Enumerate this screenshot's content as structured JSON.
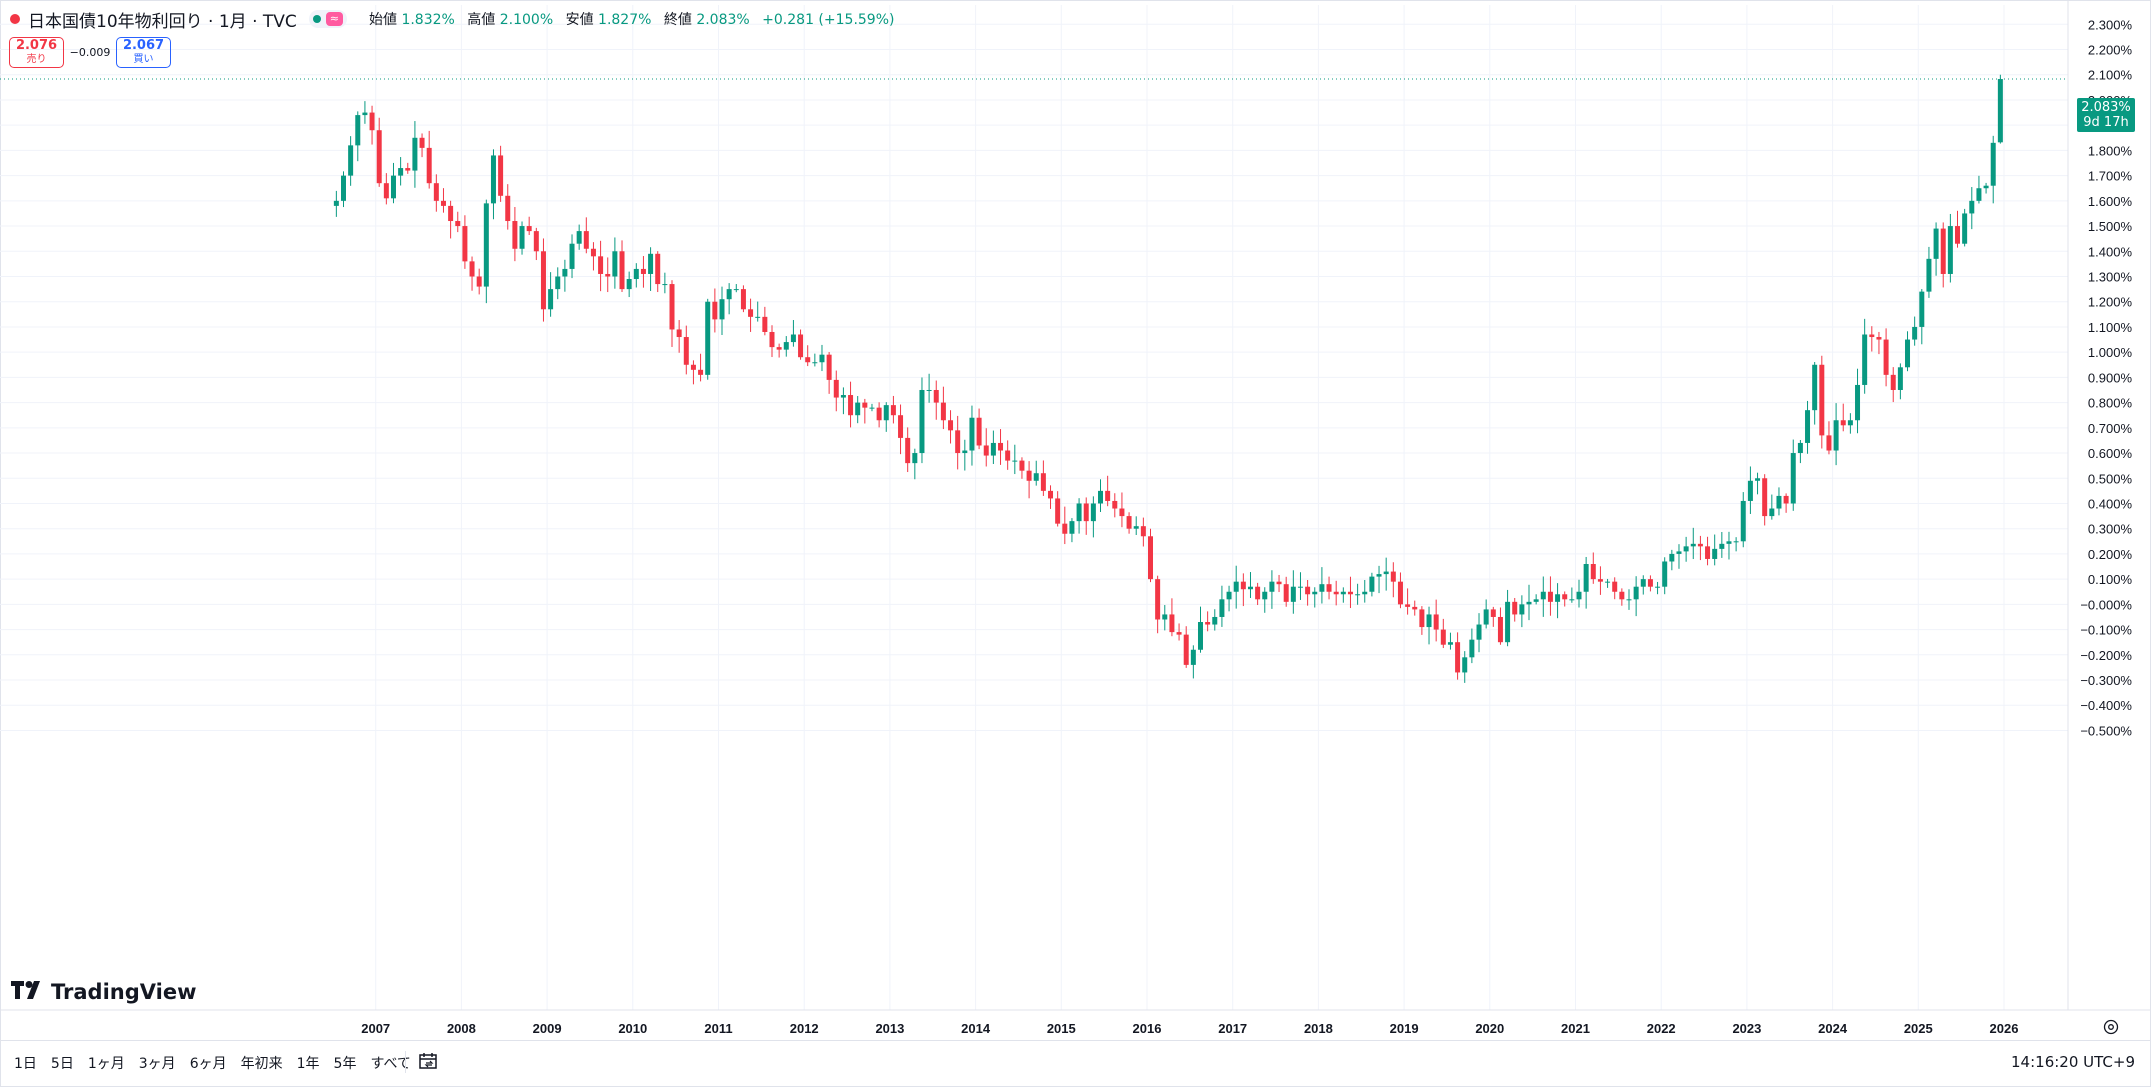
{
  "legend": {
    "symbol": "日本国債10年物利回り · 1月 · TVC",
    "market_badge": "≈",
    "open_label": "始値",
    "open": "1.832%",
    "high_label": "高値",
    "high": "2.100%",
    "low_label": "安値",
    "low": "1.827%",
    "close_label": "終値",
    "close": "2.083%",
    "change": "+0.281 (+15.59%)"
  },
  "quote": {
    "sell_price": "2.076",
    "sell_label": "売り",
    "spread": "−0.009",
    "buy_price": "2.067",
    "buy_label": "買い"
  },
  "last_price_label": {
    "price": "2.083%",
    "countdown": "9d 17h"
  },
  "logo_text": "TradingView",
  "ranges": [
    "1日",
    "5日",
    "1ヶ月",
    "3ヶ月",
    "6ヶ月",
    "年初来",
    "1年",
    "5年",
    "すべて"
  ],
  "clock": "14:16:20 UTC+9",
  "colors": {
    "up": "#089981",
    "down": "#f23645",
    "grid": "#f0f3fa",
    "text": "#131722"
  },
  "chart_data": {
    "type": "candlestick",
    "title": "日本国債10年物利回り · 1月 · TVC",
    "x_axis": {
      "type": "date",
      "tick_labels": [
        "2007",
        "2008",
        "2009",
        "2010",
        "2011",
        "2012",
        "2013",
        "2014",
        "2015",
        "2016",
        "2017",
        "2018",
        "2019",
        "2020",
        "2021",
        "2022",
        "2023",
        "2024",
        "2025",
        "2026"
      ]
    },
    "y_axis": {
      "unit": "%",
      "range": [
        -0.55,
        2.35
      ],
      "tick_labels": [
        "2.300%",
        "2.200%",
        "2.100%",
        "2.000%",
        "1.900%",
        "1.800%",
        "1.700%",
        "1.600%",
        "1.500%",
        "1.400%",
        "1.300%",
        "1.200%",
        "1.100%",
        "1.000%",
        "0.900%",
        "0.800%",
        "0.700%",
        "0.600%",
        "0.500%",
        "0.400%",
        "0.300%",
        "0.200%",
        "0.100%",
        "−0.000%",
        "−0.100%",
        "−0.200%",
        "−0.300%",
        "−0.400%",
        "−0.500%"
      ]
    },
    "grid": true,
    "last_close": 2.083,
    "anchor_closes": [
      [
        "2006-07",
        1.6
      ],
      [
        "2006-08",
        1.7
      ],
      [
        "2006-09",
        1.82
      ],
      [
        "2006-10",
        1.94
      ],
      [
        "2006-11",
        1.95
      ],
      [
        "2006-12",
        1.88
      ],
      [
        "2007-01",
        1.67
      ],
      [
        "2007-02",
        1.61
      ],
      [
        "2007-03",
        1.7
      ],
      [
        "2007-04",
        1.73
      ],
      [
        "2007-05",
        1.72
      ],
      [
        "2007-06",
        1.85
      ],
      [
        "2007-07",
        1.81
      ],
      [
        "2007-08",
        1.67
      ],
      [
        "2007-09",
        1.6
      ],
      [
        "2007-10",
        1.58
      ],
      [
        "2007-11",
        1.52
      ],
      [
        "2007-12",
        1.5
      ],
      [
        "2008-01",
        1.36
      ],
      [
        "2008-02",
        1.3
      ],
      [
        "2008-03",
        1.26
      ],
      [
        "2008-04",
        1.59
      ],
      [
        "2008-05",
        1.78
      ],
      [
        "2008-06",
        1.62
      ],
      [
        "2008-07",
        1.52
      ],
      [
        "2008-08",
        1.41
      ],
      [
        "2008-09",
        1.5
      ],
      [
        "2008-10",
        1.48
      ],
      [
        "2008-11",
        1.4
      ],
      [
        "2008-12",
        1.17
      ],
      [
        "2009-01",
        1.25
      ],
      [
        "2009-02",
        1.3
      ],
      [
        "2009-03",
        1.33
      ],
      [
        "2009-04",
        1.43
      ],
      [
        "2009-05",
        1.48
      ],
      [
        "2009-06",
        1.41
      ],
      [
        "2009-07",
        1.38
      ],
      [
        "2009-08",
        1.31
      ],
      [
        "2009-09",
        1.3
      ],
      [
        "2009-10",
        1.4
      ],
      [
        "2009-11",
        1.25
      ],
      [
        "2009-12",
        1.29
      ],
      [
        "2010-01",
        1.33
      ],
      [
        "2010-02",
        1.31
      ],
      [
        "2010-03",
        1.39
      ],
      [
        "2010-04",
        1.27
      ],
      [
        "2010-05",
        1.27
      ],
      [
        "2010-06",
        1.09
      ],
      [
        "2010-07",
        1.06
      ],
      [
        "2010-08",
        0.95
      ],
      [
        "2010-09",
        0.93
      ],
      [
        "2010-10",
        0.91
      ],
      [
        "2010-11",
        1.2
      ],
      [
        "2010-12",
        1.13
      ],
      [
        "2011-01",
        1.21
      ],
      [
        "2011-02",
        1.25
      ],
      [
        "2011-03",
        1.25
      ],
      [
        "2011-04",
        1.17
      ],
      [
        "2011-05",
        1.14
      ],
      [
        "2011-06",
        1.14
      ],
      [
        "2011-07",
        1.08
      ],
      [
        "2011-08",
        1.02
      ],
      [
        "2011-09",
        1.01
      ],
      [
        "2011-10",
        1.04
      ],
      [
        "2011-11",
        1.07
      ],
      [
        "2011-12",
        0.98
      ],
      [
        "2012-01",
        0.96
      ],
      [
        "2012-02",
        0.96
      ],
      [
        "2012-03",
        0.99
      ],
      [
        "2012-04",
        0.89
      ],
      [
        "2012-05",
        0.82
      ],
      [
        "2012-06",
        0.83
      ],
      [
        "2012-07",
        0.75
      ],
      [
        "2012-08",
        0.8
      ],
      [
        "2012-09",
        0.78
      ],
      [
        "2012-10",
        0.78
      ],
      [
        "2012-11",
        0.73
      ],
      [
        "2012-12",
        0.79
      ],
      [
        "2013-01",
        0.75
      ],
      [
        "2013-02",
        0.66
      ],
      [
        "2013-03",
        0.56
      ],
      [
        "2013-04",
        0.6
      ],
      [
        "2013-05",
        0.85
      ],
      [
        "2013-06",
        0.85
      ],
      [
        "2013-07",
        0.8
      ],
      [
        "2013-08",
        0.73
      ],
      [
        "2013-09",
        0.69
      ],
      [
        "2013-10",
        0.6
      ],
      [
        "2013-11",
        0.61
      ],
      [
        "2013-12",
        0.74
      ],
      [
        "2014-01",
        0.63
      ],
      [
        "2014-02",
        0.59
      ],
      [
        "2014-03",
        0.64
      ],
      [
        "2014-04",
        0.61
      ],
      [
        "2014-05",
        0.57
      ],
      [
        "2014-06",
        0.57
      ],
      [
        "2014-07",
        0.53
      ],
      [
        "2014-08",
        0.49
      ],
      [
        "2014-09",
        0.52
      ],
      [
        "2014-10",
        0.45
      ],
      [
        "2014-11",
        0.42
      ],
      [
        "2014-12",
        0.32
      ],
      [
        "2015-01",
        0.28
      ],
      [
        "2015-02",
        0.33
      ],
      [
        "2015-03",
        0.4
      ],
      [
        "2015-04",
        0.33
      ],
      [
        "2015-05",
        0.4
      ],
      [
        "2015-06",
        0.45
      ],
      [
        "2015-07",
        0.41
      ],
      [
        "2015-08",
        0.38
      ],
      [
        "2015-09",
        0.35
      ],
      [
        "2015-10",
        0.3
      ],
      [
        "2015-11",
        0.31
      ],
      [
        "2015-12",
        0.27
      ],
      [
        "2016-01",
        0.1
      ],
      [
        "2016-02",
        -0.06
      ],
      [
        "2016-03",
        -0.04
      ],
      [
        "2016-04",
        -0.11
      ],
      [
        "2016-05",
        -0.12
      ],
      [
        "2016-06",
        -0.24
      ],
      [
        "2016-07",
        -0.18
      ],
      [
        "2016-08",
        -0.07
      ],
      [
        "2016-09",
        -0.08
      ],
      [
        "2016-10",
        -0.05
      ],
      [
        "2016-11",
        0.02
      ],
      [
        "2016-12",
        0.05
      ],
      [
        "2017-01",
        0.09
      ],
      [
        "2017-02",
        0.06
      ],
      [
        "2017-03",
        0.07
      ],
      [
        "2017-04",
        0.02
      ],
      [
        "2017-05",
        0.05
      ],
      [
        "2017-06",
        0.09
      ],
      [
        "2017-07",
        0.08
      ],
      [
        "2017-08",
        0.01
      ],
      [
        "2017-09",
        0.07
      ],
      [
        "2017-10",
        0.07
      ],
      [
        "2017-11",
        0.04
      ],
      [
        "2017-12",
        0.05
      ],
      [
        "2018-01",
        0.08
      ],
      [
        "2018-02",
        0.05
      ],
      [
        "2018-03",
        0.04
      ],
      [
        "2018-04",
        0.05
      ],
      [
        "2018-05",
        0.04
      ],
      [
        "2018-06",
        0.04
      ],
      [
        "2018-07",
        0.05
      ],
      [
        "2018-08",
        0.11
      ],
      [
        "2018-09",
        0.12
      ],
      [
        "2018-10",
        0.13
      ],
      [
        "2018-11",
        0.09
      ],
      [
        "2018-12",
        0.0
      ],
      [
        "2019-01",
        -0.01
      ],
      [
        "2019-02",
        -0.02
      ],
      [
        "2019-03",
        -0.09
      ],
      [
        "2019-04",
        -0.04
      ],
      [
        "2019-05",
        -0.1
      ],
      [
        "2019-06",
        -0.16
      ],
      [
        "2019-07",
        -0.15
      ],
      [
        "2019-08",
        -0.27
      ],
      [
        "2019-09",
        -0.21
      ],
      [
        "2019-10",
        -0.14
      ],
      [
        "2019-11",
        -0.08
      ],
      [
        "2019-12",
        -0.02
      ],
      [
        "2020-01",
        -0.05
      ],
      [
        "2020-02",
        -0.15
      ],
      [
        "2020-03",
        0.01
      ],
      [
        "2020-04",
        -0.04
      ],
      [
        "2020-05",
        0.0
      ],
      [
        "2020-06",
        0.01
      ],
      [
        "2020-07",
        0.02
      ],
      [
        "2020-08",
        0.05
      ],
      [
        "2020-09",
        0.01
      ],
      [
        "2020-10",
        0.04
      ],
      [
        "2020-11",
        0.02
      ],
      [
        "2020-12",
        0.02
      ],
      [
        "2021-01",
        0.05
      ],
      [
        "2021-02",
        0.16
      ],
      [
        "2021-03",
        0.1
      ],
      [
        "2021-04",
        0.09
      ],
      [
        "2021-05",
        0.09
      ],
      [
        "2021-06",
        0.05
      ],
      [
        "2021-07",
        0.02
      ],
      [
        "2021-08",
        0.02
      ],
      [
        "2021-09",
        0.07
      ],
      [
        "2021-10",
        0.1
      ],
      [
        "2021-11",
        0.07
      ],
      [
        "2021-12",
        0.07
      ],
      [
        "2022-01",
        0.17
      ],
      [
        "2022-02",
        0.2
      ],
      [
        "2022-03",
        0.21
      ],
      [
        "2022-04",
        0.23
      ],
      [
        "2022-05",
        0.24
      ],
      [
        "2022-06",
        0.23
      ],
      [
        "2022-07",
        0.18
      ],
      [
        "2022-08",
        0.22
      ],
      [
        "2022-09",
        0.24
      ],
      [
        "2022-10",
        0.25
      ],
      [
        "2022-11",
        0.25
      ],
      [
        "2022-12",
        0.41
      ],
      [
        "2023-01",
        0.49
      ],
      [
        "2023-02",
        0.5
      ],
      [
        "2023-03",
        0.35
      ],
      [
        "2023-04",
        0.38
      ],
      [
        "2023-05",
        0.43
      ],
      [
        "2023-06",
        0.4
      ],
      [
        "2023-07",
        0.6
      ],
      [
        "2023-08",
        0.64
      ],
      [
        "2023-09",
        0.77
      ],
      [
        "2023-10",
        0.95
      ],
      [
        "2023-11",
        0.67
      ],
      [
        "2023-12",
        0.61
      ],
      [
        "2024-01",
        0.73
      ],
      [
        "2024-02",
        0.71
      ],
      [
        "2024-03",
        0.73
      ],
      [
        "2024-04",
        0.87
      ],
      [
        "2024-05",
        1.07
      ],
      [
        "2024-06",
        1.06
      ],
      [
        "2024-07",
        1.05
      ],
      [
        "2024-08",
        0.91
      ],
      [
        "2024-09",
        0.85
      ],
      [
        "2024-10",
        0.94
      ],
      [
        "2024-11",
        1.05
      ],
      [
        "2024-12",
        1.1
      ],
      [
        "2025-01",
        1.24
      ],
      [
        "2025-02",
        1.37
      ],
      [
        "2025-03",
        1.49
      ],
      [
        "2025-04",
        1.31
      ],
      [
        "2025-05",
        1.5
      ],
      [
        "2025-06",
        1.43
      ],
      [
        "2025-07",
        1.55
      ],
      [
        "2025-08",
        1.6
      ],
      [
        "2025-09",
        1.65
      ],
      [
        "2025-10",
        1.66
      ],
      [
        "2025-11",
        1.83
      ],
      [
        "2025-12",
        2.083
      ]
    ],
    "last_candle": {
      "open": 1.832,
      "high": 2.1,
      "low": 1.827,
      "close": 2.083
    }
  }
}
